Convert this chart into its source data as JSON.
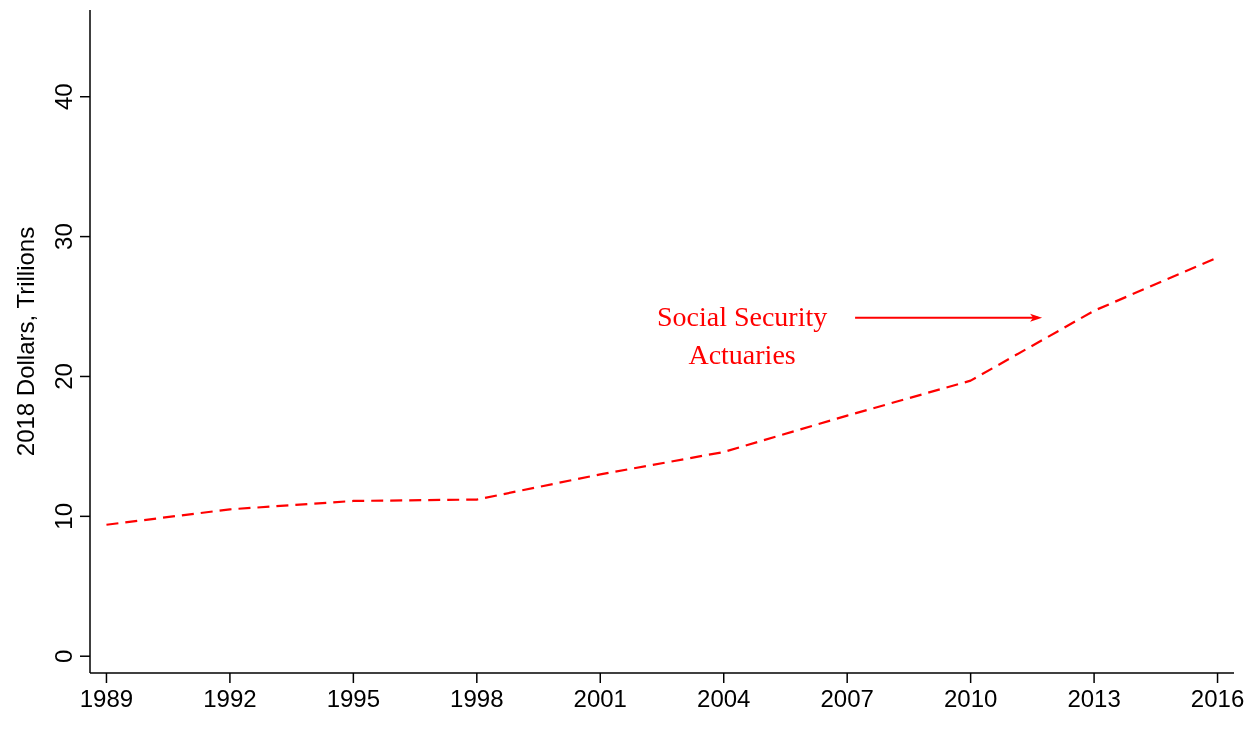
{
  "chart_data": {
    "type": "line",
    "ylabel": "2018 Dollars, Trillions",
    "x": [
      1989,
      1992,
      1995,
      1998,
      2001,
      2004,
      2007,
      2010,
      2013,
      2016
    ],
    "series": [
      {
        "name": "Social Security Actuaries",
        "color": "#ff0000",
        "values": [
          9.4,
          10.5,
          11.1,
          11.2,
          13.0,
          14.6,
          17.2,
          19.7,
          24.7,
          28.5
        ]
      }
    ],
    "xlim": [
      1988.6,
      2016.4
    ],
    "ylim": [
      -1.2,
      46.2
    ],
    "xticks": [
      1989,
      1992,
      1995,
      1998,
      2001,
      2004,
      2007,
      2010,
      2013,
      2016
    ],
    "yticks": [
      0,
      10,
      20,
      30,
      40
    ],
    "line_style": "dashed",
    "marker": "none"
  }
}
